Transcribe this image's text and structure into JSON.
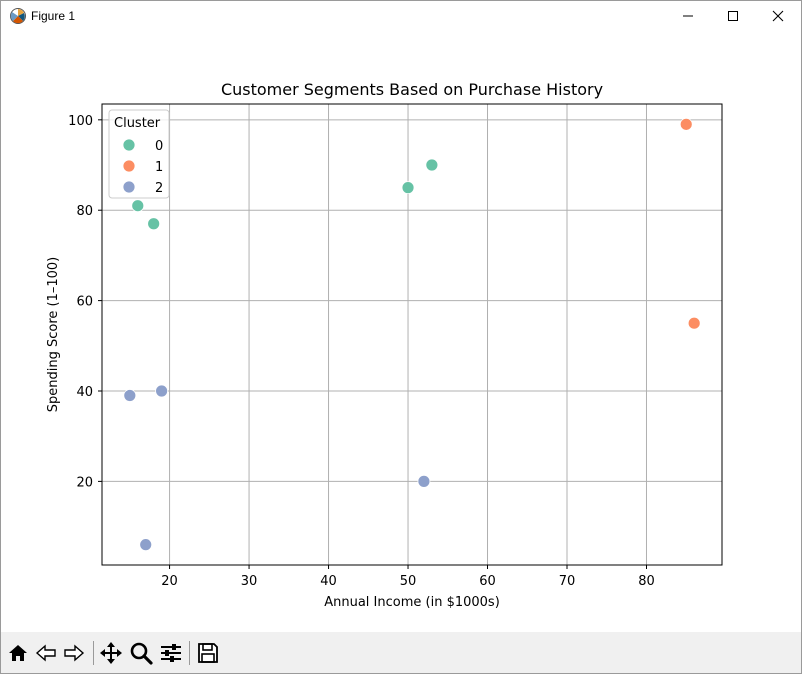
{
  "window": {
    "title": "Figure 1"
  },
  "colors": {
    "cluster_0": "#66c2a5",
    "cluster_1": "#fc8d62",
    "cluster_2": "#8da0cb",
    "grid": "#b0b0b0"
  },
  "toolbar": {
    "icons": [
      "home-icon",
      "back-icon",
      "forward-icon",
      "pan-icon",
      "zoom-icon",
      "configure-subplots-icon",
      "save-icon"
    ]
  },
  "chart_data": {
    "type": "scatter",
    "title": "Customer Segments Based on Purchase History",
    "xlabel": "Annual Income (in $1000s)",
    "ylabel": "Spending Score (1–100)",
    "xlim": [
      11.5,
      89.5
    ],
    "ylim": [
      1.5,
      103.5
    ],
    "xticks": [
      20,
      30,
      40,
      50,
      60,
      70,
      80
    ],
    "yticks": [
      20,
      40,
      60,
      80,
      100
    ],
    "grid": true,
    "legend": {
      "title": "Cluster",
      "position": "top-left"
    },
    "series": [
      {
        "name": "0",
        "x": [
          16,
          18,
          50,
          53
        ],
        "y": [
          81,
          77,
          85,
          90
        ]
      },
      {
        "name": "1",
        "x": [
          85,
          86
        ],
        "y": [
          99,
          55
        ]
      },
      {
        "name": "2",
        "x": [
          15,
          19,
          17,
          52
        ],
        "y": [
          39,
          40,
          6,
          20
        ]
      }
    ]
  }
}
